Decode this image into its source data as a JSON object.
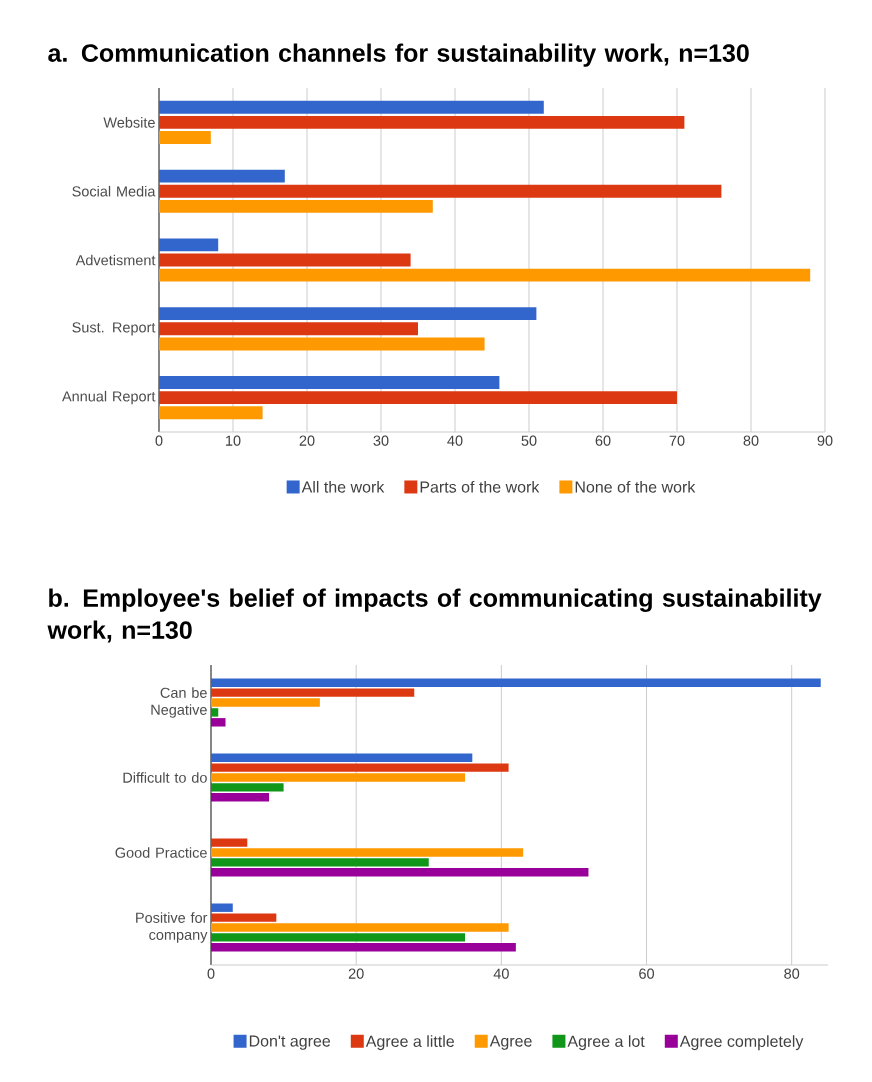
{
  "chart_data": [
    {
      "type": "bar",
      "orientation": "horizontal",
      "title": "a. Communication channels for sustainability work, n=130",
      "categories": [
        "Website",
        "Social Media",
        "Advetisment",
        "Sust. Report",
        "Annual Report"
      ],
      "series": [
        {
          "name": "All the work",
          "color": "#3366cc",
          "values": [
            52,
            17,
            8,
            51,
            46
          ]
        },
        {
          "name": "Parts of the work",
          "color": "#dc3912",
          "values": [
            71,
            76,
            34,
            35,
            70
          ]
        },
        {
          "name": "None of the work",
          "color": "#ff9900",
          "values": [
            7,
            37,
            88,
            44,
            14
          ]
        }
      ],
      "xlim": [
        0,
        90
      ],
      "xticks": [
        0,
        10,
        20,
        30,
        40,
        50,
        60,
        70,
        80,
        90
      ],
      "grid": "x",
      "legend": "bottom"
    },
    {
      "type": "bar",
      "orientation": "horizontal",
      "title": "b. Employee's belief of impacts of communicating sustainability work, n=130",
      "categories": [
        "Can be Negative",
        "Difficult to do",
        "Good Practice",
        "Positive for company"
      ],
      "series": [
        {
          "name": "Don't agree",
          "color": "#3366cc",
          "values": [
            84,
            36,
            0,
            3
          ]
        },
        {
          "name": "Agree a little",
          "color": "#dc3912",
          "values": [
            28,
            41,
            5,
            9
          ]
        },
        {
          "name": "Agree",
          "color": "#ff9900",
          "values": [
            15,
            35,
            43,
            41
          ]
        },
        {
          "name": "Agree a lot",
          "color": "#109618",
          "values": [
            1,
            10,
            30,
            35
          ]
        },
        {
          "name": "Agree completely",
          "color": "#990099",
          "values": [
            2,
            8,
            52,
            42
          ]
        }
      ],
      "xlim": [
        0,
        85
      ],
      "xticks": [
        0,
        20,
        40,
        60,
        80
      ],
      "grid": "x",
      "legend": "bottom"
    }
  ]
}
